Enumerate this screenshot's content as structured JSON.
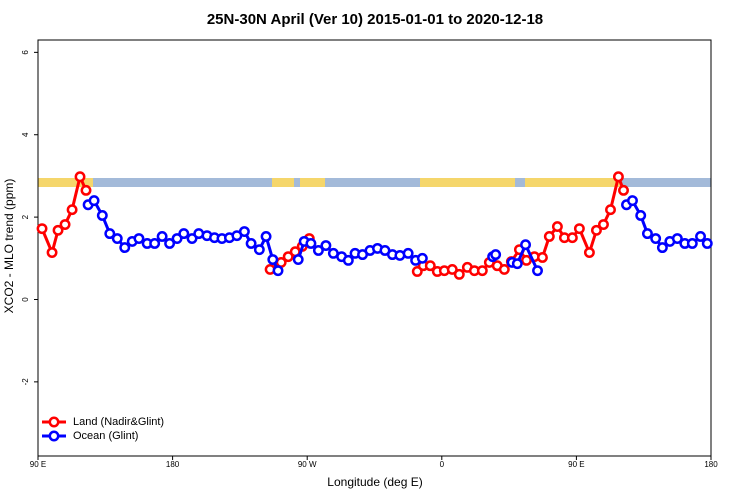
{
  "chart_data": {
    "type": "line",
    "title": "25N-30N April (Ver 10)   2015-01-01 to 2020-12-18",
    "x_label": "Longitude (deg E)",
    "y_label": "XCO2 - MLO trend (ppm)",
    "xlim": [
      90,
      540
    ],
    "ylim": [
      -3.8,
      6.3
    ],
    "xticks": [
      {
        "value": 90,
        "label": "90 E"
      },
      {
        "value": 180,
        "label": "180"
      },
      {
        "value": 270,
        "label": "90 W"
      },
      {
        "value": 360,
        "label": "0"
      },
      {
        "value": 450,
        "label": "90 E"
      },
      {
        "value": 540,
        "label": "180"
      }
    ],
    "yticks": [
      -2,
      0,
      2,
      4,
      6
    ],
    "legend": "bottom-left",
    "series": [
      {
        "name": "Land (Nadir&Glint)",
        "color": "#ff0000",
        "x": [
          92.7,
          99.4,
          103.4,
          108.1,
          112.8,
          118.1,
          122.1,
          null,
          245.2,
          252.6,
          257.3,
          262,
          266.7,
          271.4,
          null,
          343.6,
          347.6,
          352.3,
          357,
          361.7,
          367,
          371.7,
          377.1,
          381.8,
          387.1,
          391.8,
          397.1,
          401.8,
          406.5,
          411.9,
          416.6,
          421.9,
          427.3,
          431.9,
          437.3,
          442,
          447.3,
          452,
          458.7,
          463.4,
          468.1,
          472.8,
          478.1,
          481.5
        ],
        "values": [
          1.72,
          1.14,
          1.68,
          1.82,
          2.18,
          2.98,
          2.65,
          null,
          0.73,
          0.9,
          1.04,
          1.16,
          1.29,
          1.48,
          null,
          0.68,
          0.82,
          0.82,
          0.68,
          0.7,
          0.73,
          0.61,
          0.78,
          0.7,
          0.7,
          0.9,
          0.82,
          0.73,
          0.92,
          1.21,
          0.95,
          1.04,
          1.02,
          1.53,
          1.77,
          1.5,
          1.5,
          1.72,
          1.14,
          1.68,
          1.82,
          2.18,
          2.98,
          2.65
        ]
      },
      {
        "name": "Ocean (Glint)",
        "color": "#0000ff",
        "x": [
          123.5,
          127.5,
          133,
          138,
          143,
          148,
          153,
          157.5,
          163,
          168,
          173,
          178,
          183,
          187.5,
          193,
          197.5,
          203,
          208,
          213,
          218,
          223,
          228,
          232.5,
          238,
          242.5,
          247,
          250.5,
          null,
          264,
          268,
          272.5,
          277.5,
          282.5,
          287.5,
          293,
          297.5,
          302,
          307,
          312,
          317,
          322,
          327,
          332,
          337.5,
          342.5,
          347,
          null,
          394,
          396,
          null,
          407,
          410.5,
          416,
          424,
          null,
          483.5,
          487.5,
          493,
          497.5,
          503,
          507.5,
          512.5,
          517.5,
          522.5,
          527.5,
          533,
          537.5
        ],
        "values": [
          2.3,
          2.4,
          2.04,
          1.6,
          1.48,
          1.26,
          1.41,
          1.48,
          1.36,
          1.36,
          1.53,
          1.36,
          1.48,
          1.6,
          1.48,
          1.6,
          1.55,
          1.5,
          1.48,
          1.5,
          1.55,
          1.65,
          1.36,
          1.21,
          1.53,
          0.97,
          0.7,
          null,
          0.97,
          1.41,
          1.36,
          1.19,
          1.31,
          1.12,
          1.04,
          0.95,
          1.12,
          1.09,
          1.19,
          1.24,
          1.19,
          1.09,
          1.07,
          1.12,
          0.95,
          1.0,
          null,
          1.04,
          1.09,
          null,
          0.9,
          0.87,
          1.33,
          0.7,
          null,
          2.3,
          2.4,
          2.04,
          1.6,
          1.48,
          1.26,
          1.41,
          1.48,
          1.36,
          1.36,
          1.53,
          1.36
        ]
      }
    ]
  }
}
